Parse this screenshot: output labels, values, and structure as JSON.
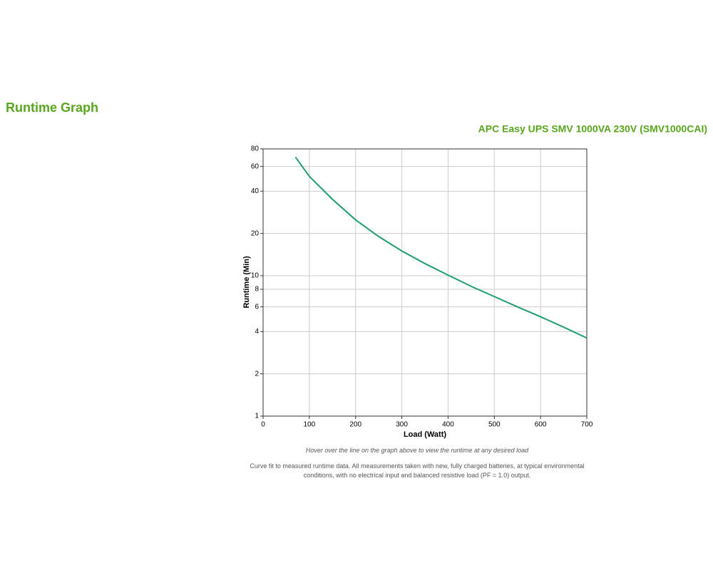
{
  "page_title": "Runtime Graph",
  "chart_data": {
    "type": "line",
    "title": "APC Easy UPS SMV 1000VA 230V (SMV1000CAI)",
    "x_label": "Load (Watt)",
    "y_label": "Runtime (Min)",
    "x": [
      70,
      100,
      150,
      200,
      250,
      300,
      350,
      400,
      450,
      500,
      550,
      600,
      650,
      700
    ],
    "series": [
      {
        "name": "Runtime",
        "color": "#1f9e6e",
        "values": [
          70,
          51,
          35,
          25,
          19,
          15,
          12.2,
          10.1,
          8.4,
          7.1,
          6,
          5.1,
          4.3,
          3.6
        ]
      }
    ],
    "xlim": [
      0,
      700
    ],
    "xticks": [
      0,
      100,
      200,
      300,
      400,
      500,
      600,
      700
    ],
    "ylim": [
      1,
      80
    ],
    "yticks": [
      1,
      2,
      4,
      6,
      8,
      10,
      20,
      40,
      60,
      80
    ],
    "log_y": true,
    "grid": true
  },
  "hover_note": "Hover over the line on the graph above to view the runtime at any desired load",
  "footnote": "Curve fit to measured runtime data. All measurements taken with new, fully charged batteries, at typical environmental conditions, with no electrical input and balanced resistive load (PF = 1.0) output."
}
